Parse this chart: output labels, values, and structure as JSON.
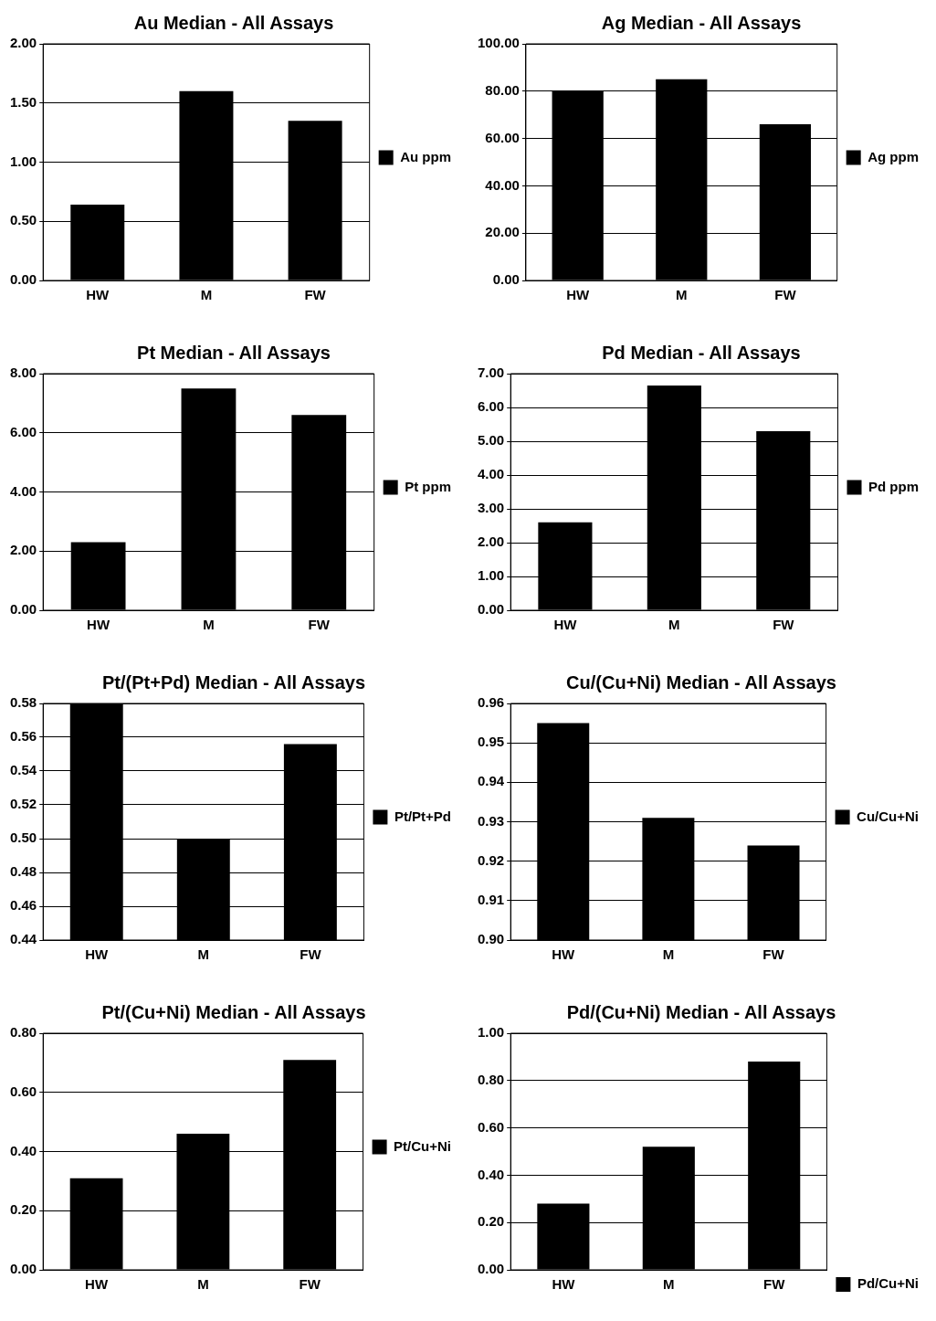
{
  "chart_data": [
    {
      "type": "bar",
      "title": "Au Median - All Assays",
      "categories": [
        "HW",
        "M",
        "FW"
      ],
      "series": [
        {
          "name": "Au ppm",
          "color": "#000000",
          "values": [
            0.64,
            1.6,
            1.35
          ]
        }
      ],
      "ylim": [
        0,
        2
      ],
      "yticks": [
        {
          "value": 0,
          "label": "0.00"
        },
        {
          "value": 0.5,
          "label": "0.50"
        },
        {
          "value": 1,
          "label": "1.00"
        },
        {
          "value": 1.5,
          "label": "1.50"
        },
        {
          "value": 2,
          "label": "2.00"
        }
      ],
      "grid": "y",
      "legend": "right"
    },
    {
      "type": "bar",
      "title": "Ag Median - All Assays",
      "categories": [
        "HW",
        "M",
        "FW"
      ],
      "series": [
        {
          "name": "Ag ppm",
          "color": "#000000",
          "values": [
            80,
            85,
            66
          ]
        }
      ],
      "ylim": [
        0,
        100
      ],
      "yticks": [
        {
          "value": 0,
          "label": "0.00"
        },
        {
          "value": 20,
          "label": "20.00"
        },
        {
          "value": 40,
          "label": "40.00"
        },
        {
          "value": 60,
          "label": "60.00"
        },
        {
          "value": 80,
          "label": "80.00"
        },
        {
          "value": 100,
          "label": "100.00"
        }
      ],
      "grid": "y",
      "legend": "right"
    },
    {
      "type": "bar",
      "title": "Pt Median - All Assays",
      "categories": [
        "HW",
        "M",
        "FW"
      ],
      "series": [
        {
          "name": "Pt ppm",
          "color": "#000000",
          "values": [
            2.3,
            7.5,
            6.6
          ]
        }
      ],
      "ylim": [
        0,
        8
      ],
      "yticks": [
        {
          "value": 0,
          "label": "0.00"
        },
        {
          "value": 2,
          "label": "2.00"
        },
        {
          "value": 4,
          "label": "4.00"
        },
        {
          "value": 6,
          "label": "6.00"
        },
        {
          "value": 8,
          "label": "8.00"
        }
      ],
      "grid": "y",
      "legend": "right"
    },
    {
      "type": "bar",
      "title": "Pd Median - All Assays",
      "categories": [
        "HW",
        "M",
        "FW"
      ],
      "series": [
        {
          "name": "Pd ppm",
          "color": "#000000",
          "values": [
            2.6,
            6.65,
            5.3
          ]
        }
      ],
      "ylim": [
        0,
        7
      ],
      "yticks": [
        {
          "value": 0,
          "label": "0.00"
        },
        {
          "value": 1,
          "label": "1.00"
        },
        {
          "value": 2,
          "label": "2.00"
        },
        {
          "value": 3,
          "label": "3.00"
        },
        {
          "value": 4,
          "label": "4.00"
        },
        {
          "value": 5,
          "label": "5.00"
        },
        {
          "value": 6,
          "label": "6.00"
        },
        {
          "value": 7,
          "label": "7.00"
        }
      ],
      "grid": "y",
      "legend": "right"
    },
    {
      "type": "bar",
      "title": "Pt/(Pt+Pd) Median - All Assays",
      "categories": [
        "HW",
        "M",
        "FW"
      ],
      "series": [
        {
          "name": "Pt/Pt+Pd",
          "color": "#000000",
          "values": [
            0.58,
            0.5,
            0.556
          ]
        }
      ],
      "ylim": [
        0.44,
        0.58
      ],
      "yticks": [
        {
          "value": 0.44,
          "label": "0.44"
        },
        {
          "value": 0.46,
          "label": "0.46"
        },
        {
          "value": 0.48,
          "label": "0.48"
        },
        {
          "value": 0.5,
          "label": "0.50"
        },
        {
          "value": 0.52,
          "label": "0.52"
        },
        {
          "value": 0.54,
          "label": "0.54"
        },
        {
          "value": 0.56,
          "label": "0.56"
        },
        {
          "value": 0.58,
          "label": "0.58"
        }
      ],
      "grid": "y",
      "legend": "right"
    },
    {
      "type": "bar",
      "title": "Cu/(Cu+Ni) Median - All Assays",
      "categories": [
        "HW",
        "M",
        "FW"
      ],
      "series": [
        {
          "name": "Cu/Cu+Ni",
          "color": "#000000",
          "values": [
            0.955,
            0.931,
            0.924
          ]
        }
      ],
      "ylim": [
        0.9,
        0.96
      ],
      "yticks": [
        {
          "value": 0.9,
          "label": "0.90"
        },
        {
          "value": 0.91,
          "label": "0.91"
        },
        {
          "value": 0.92,
          "label": "0.92"
        },
        {
          "value": 0.93,
          "label": "0.93"
        },
        {
          "value": 0.94,
          "label": "0.94"
        },
        {
          "value": 0.95,
          "label": "0.95"
        },
        {
          "value": 0.96,
          "label": "0.96"
        }
      ],
      "grid": "y",
      "legend": "right"
    },
    {
      "type": "bar",
      "title": "Pt/(Cu+Ni) Median - All Assays",
      "categories": [
        "HW",
        "M",
        "FW"
      ],
      "series": [
        {
          "name": "Pt/Cu+Ni",
          "color": "#000000",
          "values": [
            0.31,
            0.46,
            0.71
          ]
        }
      ],
      "ylim": [
        0,
        0.8
      ],
      "yticks": [
        {
          "value": 0,
          "label": "0.00"
        },
        {
          "value": 0.2,
          "label": "0.20"
        },
        {
          "value": 0.4,
          "label": "0.40"
        },
        {
          "value": 0.6,
          "label": "0.60"
        },
        {
          "value": 0.8,
          "label": "0.80"
        }
      ],
      "grid": "y",
      "legend": "right"
    },
    {
      "type": "bar",
      "title": "Pd/(Cu+Ni) Median - All Assays",
      "categories": [
        "HW",
        "M",
        "FW"
      ],
      "series": [
        {
          "name": "Pd/Cu+Ni",
          "color": "#000000",
          "values": [
            0.28,
            0.52,
            0.88
          ]
        }
      ],
      "ylim": [
        0,
        1
      ],
      "yticks": [
        {
          "value": 0,
          "label": "0.00"
        },
        {
          "value": 0.2,
          "label": "0.20"
        },
        {
          "value": 0.4,
          "label": "0.40"
        },
        {
          "value": 0.6,
          "label": "0.60"
        },
        {
          "value": 0.8,
          "label": "0.80"
        },
        {
          "value": 1,
          "label": "1.00"
        }
      ],
      "grid": "y",
      "legend": "bottom right"
    }
  ]
}
